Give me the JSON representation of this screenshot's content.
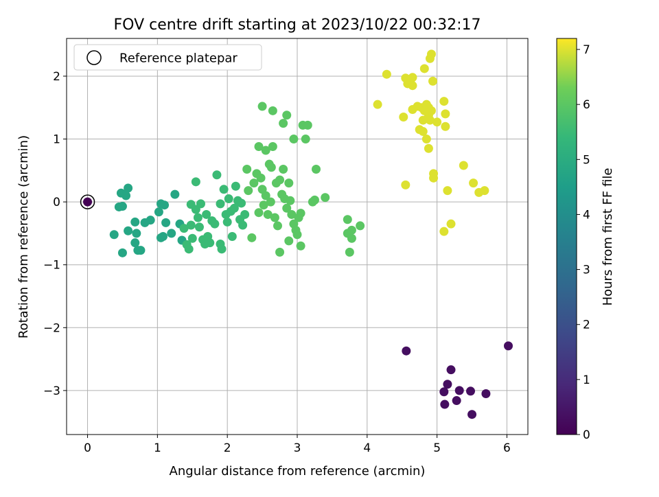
{
  "chart_data": {
    "type": "scatter",
    "title": "FOV centre drift starting at 2023/10/22 00:32:17",
    "xlabel": "Angular distance from reference (arcmin)",
    "ylabel": "Rotation from reference (arcmin)",
    "xlim": [
      -0.3,
      6.3
    ],
    "ylim": [
      -3.7,
      2.6
    ],
    "xticks": [
      0,
      1,
      2,
      3,
      4,
      5,
      6
    ],
    "yticks": [
      2,
      1,
      0,
      -1,
      -2,
      -3
    ],
    "ytick_labels": [
      "2",
      "1",
      "0",
      "−1",
      "−2",
      "−3"
    ],
    "grid": true,
    "legend": {
      "placement": "top-left",
      "entries": [
        "Reference platepar"
      ]
    },
    "colorbar": {
      "label": "Hours from first FF file",
      "range": [
        0,
        7.2
      ],
      "ticks": [
        0,
        1,
        2,
        3,
        4,
        5,
        6,
        7
      ],
      "colormap": "viridis"
    },
    "reference": {
      "x": 0,
      "y": 0,
      "c": 0
    },
    "groups": [
      {
        "c": 0.3,
        "points": [
          [
            4.56,
            -2.37
          ],
          [
            6.02,
            -2.29
          ],
          [
            5.2,
            -2.67
          ],
          [
            5.15,
            -2.9
          ],
          [
            5.1,
            -3.02
          ],
          [
            5.32,
            -3.0
          ],
          [
            5.48,
            -3.01
          ],
          [
            5.7,
            -3.05
          ],
          [
            5.28,
            -3.16
          ],
          [
            5.11,
            -3.22
          ],
          [
            5.5,
            -3.38
          ]
        ]
      },
      {
        "c": 4.8,
        "points": [
          [
            0.38,
            -0.52
          ],
          [
            0.48,
            0.14
          ],
          [
            0.55,
            0.1
          ],
          [
            0.58,
            0.22
          ],
          [
            0.45,
            -0.08
          ],
          [
            0.5,
            -0.07
          ],
          [
            0.58,
            -0.46
          ],
          [
            0.68,
            -0.32
          ],
          [
            0.7,
            -0.5
          ],
          [
            0.68,
            -0.65
          ],
          [
            0.72,
            -0.77
          ],
          [
            0.76,
            -0.77
          ],
          [
            0.82,
            -0.33
          ],
          [
            0.9,
            -0.29
          ],
          [
            0.5,
            -0.81
          ],
          [
            1.02,
            -0.16
          ],
          [
            1.05,
            -0.03
          ],
          [
            1.1,
            -0.05
          ],
          [
            1.12,
            -0.33
          ],
          [
            1.2,
            -0.5
          ],
          [
            1.25,
            0.12
          ],
          [
            1.05,
            -0.57
          ],
          [
            1.08,
            -0.55
          ],
          [
            1.32,
            -0.35
          ],
          [
            1.35,
            -0.61
          ]
        ]
      },
      {
        "c": 5.5,
        "points": [
          [
            1.38,
            -0.42
          ],
          [
            1.45,
            -0.75
          ],
          [
            1.42,
            -0.68
          ],
          [
            1.48,
            -0.04
          ],
          [
            1.55,
            0.32
          ],
          [
            1.55,
            -0.12
          ],
          [
            1.58,
            -0.25
          ],
          [
            1.6,
            -0.4
          ],
          [
            1.62,
            -0.03
          ],
          [
            1.65,
            -0.6
          ],
          [
            1.7,
            -0.2
          ],
          [
            1.72,
            -0.55
          ],
          [
            1.75,
            -0.65
          ],
          [
            1.78,
            -0.3
          ],
          [
            1.82,
            -0.35
          ],
          [
            1.85,
            0.43
          ],
          [
            1.9,
            -0.03
          ],
          [
            1.9,
            -0.67
          ],
          [
            1.92,
            -0.75
          ],
          [
            1.95,
            0.2
          ],
          [
            1.98,
            -0.2
          ],
          [
            2.0,
            -0.32
          ],
          [
            2.02,
            0.05
          ],
          [
            2.05,
            -0.15
          ],
          [
            2.07,
            -0.55
          ],
          [
            2.1,
            -0.1
          ],
          [
            2.12,
            0.25
          ],
          [
            2.15,
            0.02
          ],
          [
            2.18,
            -0.28
          ],
          [
            2.2,
            -0.02
          ],
          [
            2.22,
            -0.37
          ],
          [
            2.25,
            -0.2
          ],
          [
            1.5,
            -0.58
          ],
          [
            1.48,
            -0.37
          ],
          [
            1.68,
            -0.67
          ]
        ]
      },
      {
        "c": 6.0,
        "points": [
          [
            2.28,
            0.52
          ],
          [
            2.3,
            0.18
          ],
          [
            2.35,
            -0.57
          ],
          [
            2.38,
            0.3
          ],
          [
            2.42,
            0.45
          ],
          [
            2.45,
            -0.17
          ],
          [
            2.45,
            0.88
          ],
          [
            2.48,
            0.38
          ],
          [
            2.5,
            0.2
          ],
          [
            2.5,
            1.52
          ],
          [
            2.52,
            -0.05
          ],
          [
            2.55,
            0.82
          ],
          [
            2.55,
            0.1
          ],
          [
            2.58,
            -0.2
          ],
          [
            2.6,
            0.6
          ],
          [
            2.62,
            0.0
          ],
          [
            2.63,
            0.55
          ],
          [
            2.65,
            0.88
          ],
          [
            2.65,
            1.45
          ],
          [
            2.68,
            -0.25
          ],
          [
            2.7,
            0.3
          ],
          [
            2.72,
            -0.38
          ],
          [
            2.75,
            0.35
          ],
          [
            2.75,
            -0.8
          ],
          [
            2.78,
            0.12
          ],
          [
            2.8,
            1.25
          ],
          [
            2.8,
            0.52
          ],
          [
            2.82,
            0.05
          ],
          [
            2.85,
            -0.1
          ],
          [
            2.85,
            1.38
          ],
          [
            2.88,
            0.3
          ],
          [
            2.88,
            -0.62
          ],
          [
            2.9,
            0.02
          ],
          [
            2.92,
            -0.2
          ],
          [
            2.95,
            1.0
          ],
          [
            2.95,
            -0.35
          ],
          [
            2.98,
            -0.45
          ],
          [
            3.0,
            -0.52
          ],
          [
            3.02,
            -0.25
          ],
          [
            3.05,
            -0.18
          ],
          [
            3.05,
            -0.7
          ],
          [
            3.08,
            1.22
          ],
          [
            3.12,
            1.0
          ],
          [
            3.15,
            1.22
          ],
          [
            3.22,
            0.0
          ],
          [
            3.25,
            0.03
          ],
          [
            3.27,
            0.52
          ],
          [
            3.4,
            0.07
          ],
          [
            3.72,
            -0.28
          ],
          [
            3.72,
            -0.5
          ],
          [
            3.75,
            -0.8
          ],
          [
            3.78,
            -0.45
          ],
          [
            3.78,
            -0.58
          ],
          [
            3.9,
            -0.38
          ]
        ]
      },
      {
        "c": 7.0,
        "points": [
          [
            4.15,
            1.55
          ],
          [
            4.28,
            2.03
          ],
          [
            4.52,
            1.35
          ],
          [
            4.55,
            1.97
          ],
          [
            4.58,
            1.88
          ],
          [
            4.62,
            1.9
          ],
          [
            4.65,
            1.85
          ],
          [
            4.65,
            1.98
          ],
          [
            4.65,
            1.47
          ],
          [
            4.72,
            1.52
          ],
          [
            4.75,
            1.15
          ],
          [
            4.78,
            1.5
          ],
          [
            4.8,
            1.3
          ],
          [
            4.82,
            2.12
          ],
          [
            4.82,
            1.45
          ],
          [
            4.85,
            1.0
          ],
          [
            4.85,
            1.55
          ],
          [
            4.88,
            1.5
          ],
          [
            4.88,
            1.38
          ],
          [
            4.88,
            0.85
          ],
          [
            4.9,
            2.28
          ],
          [
            4.9,
            1.3
          ],
          [
            4.92,
            2.35
          ],
          [
            4.92,
            1.45
          ],
          [
            4.94,
            1.92
          ],
          [
            4.95,
            0.45
          ],
          [
            4.95,
            0.38
          ],
          [
            5.0,
            1.27
          ],
          [
            5.1,
            1.6
          ],
          [
            5.12,
            1.4
          ],
          [
            5.12,
            1.2
          ],
          [
            5.1,
            -0.47
          ],
          [
            5.15,
            0.18
          ],
          [
            5.2,
            -0.35
          ],
          [
            5.38,
            0.58
          ],
          [
            5.52,
            0.3
          ],
          [
            5.6,
            0.15
          ],
          [
            5.68,
            0.18
          ],
          [
            4.55,
            0.27
          ],
          [
            4.8,
            1.12
          ]
        ]
      }
    ]
  }
}
